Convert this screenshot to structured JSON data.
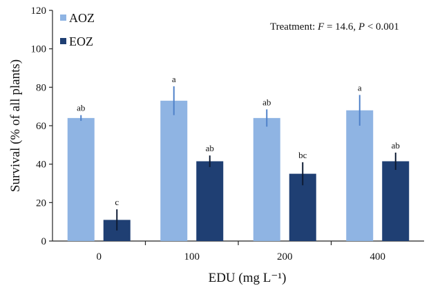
{
  "chart_data": {
    "type": "bar",
    "xlabel": "EDU (mg L⁻¹)",
    "ylabel": "Survival (% of all plants)",
    "ylim": [
      0,
      120
    ],
    "yticks": [
      0,
      20,
      40,
      60,
      80,
      100,
      120
    ],
    "categories": [
      "0",
      "100",
      "200",
      "400"
    ],
    "legend_position": "top-left",
    "annotation": {
      "prefix": "Treatment: ",
      "f_symbol": "F",
      "f_text": " = 14.6, ",
      "p_symbol": "P",
      "p_text": " < 0.001"
    },
    "series": [
      {
        "name": "AOZ",
        "color": "#8fb4e3",
        "values": [
          64,
          73,
          64,
          68
        ],
        "errors": [
          1.5,
          7.5,
          4.5,
          8
        ],
        "letters": [
          "ab",
          "a",
          "ab",
          "a"
        ]
      },
      {
        "name": "EOZ",
        "color": "#1f3f73",
        "values": [
          11,
          41.5,
          35,
          41.5
        ],
        "errors": [
          5.5,
          3,
          6,
          4.5
        ],
        "letters": [
          "c",
          "ab",
          "bc",
          "ab"
        ]
      }
    ]
  }
}
